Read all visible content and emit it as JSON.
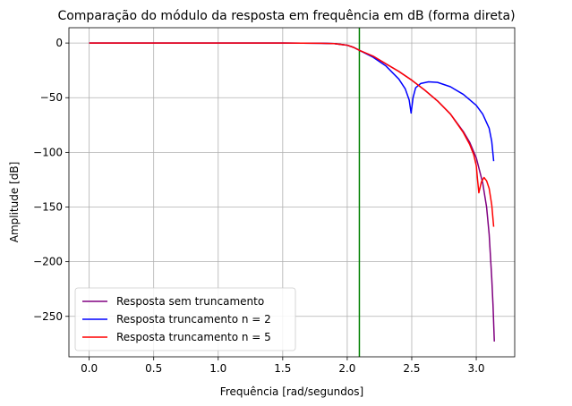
{
  "chart_data": {
    "type": "line",
    "title": "Comparação do módulo da resposta em frequência em dB (forma direta)",
    "xlabel": "Frequência [rad/segundos]",
    "ylabel": "Amplitude [dB]",
    "xlim": [
      -0.157,
      3.298
    ],
    "ylim": [
      -287,
      14
    ],
    "xticks": [
      0.0,
      0.5,
      1.0,
      1.5,
      2.0,
      2.5,
      3.0
    ],
    "xtick_labels": [
      "0.0",
      "0.5",
      "1.0",
      "1.5",
      "2.0",
      "2.5",
      "3.0"
    ],
    "yticks": [
      0,
      -50,
      -100,
      -150,
      -200,
      -250
    ],
    "ytick_labels": [
      "0",
      "−50",
      "−100",
      "−150",
      "−200",
      "−250"
    ],
    "grid": true,
    "legend_position": "lower-left",
    "vline": {
      "x": 2.094,
      "color": "#008000"
    },
    "series": [
      {
        "name": "Resposta sem truncamento",
        "color": "#800080",
        "x": [
          0,
          0.5,
          1.0,
          1.5,
          1.8,
          1.9,
          2.0,
          2.05,
          2.1,
          2.2,
          2.3,
          2.4,
          2.5,
          2.6,
          2.7,
          2.8,
          2.9,
          2.95,
          3.0,
          3.05,
          3.08,
          3.1,
          3.12,
          3.13,
          3.14
        ],
        "y": [
          0,
          0,
          0,
          0,
          -0.2,
          -0.5,
          -2.0,
          -4.0,
          -7.0,
          -12.0,
          -19.0,
          -26.0,
          -34.0,
          -43.0,
          -53.0,
          -65.0,
          -81.0,
          -91.0,
          -105.0,
          -128.0,
          -150.0,
          -175.0,
          -215.0,
          -240.0,
          -273.0
        ]
      },
      {
        "name": "Resposta truncamento n = 2",
        "color": "#0000ff",
        "x": [
          0,
          0.5,
          1.0,
          1.5,
          1.8,
          1.9,
          2.0,
          2.05,
          2.1,
          2.2,
          2.3,
          2.4,
          2.45,
          2.48,
          2.495,
          2.51,
          2.53,
          2.57,
          2.63,
          2.7,
          2.8,
          2.9,
          3.0,
          3.05,
          3.1,
          3.12,
          3.135
        ],
        "y": [
          0,
          0,
          0,
          0,
          -0.2,
          -0.5,
          -2.0,
          -4.0,
          -7.0,
          -13.0,
          -21.0,
          -33.0,
          -42.0,
          -52.0,
          -64.0,
          -50.0,
          -41.0,
          -37.0,
          -35.5,
          -36.0,
          -40.0,
          -47.0,
          -57.0,
          -65.0,
          -78.0,
          -90.0,
          -108.0
        ]
      },
      {
        "name": "Resposta truncamento n = 5",
        "color": "#ff0000",
        "x": [
          0,
          0.5,
          1.0,
          1.5,
          1.8,
          1.9,
          2.0,
          2.05,
          2.1,
          2.2,
          2.3,
          2.4,
          2.5,
          2.6,
          2.7,
          2.8,
          2.9,
          2.95,
          2.98,
          3.0,
          3.01,
          3.02,
          3.04,
          3.06,
          3.08,
          3.1,
          3.12,
          3.135
        ],
        "y": [
          0,
          0,
          0,
          0,
          -0.2,
          -0.5,
          -2.0,
          -4.0,
          -7.0,
          -12.0,
          -19.0,
          -26.0,
          -34.0,
          -43.0,
          -53.0,
          -65.0,
          -82.0,
          -93.0,
          -102.0,
          -112.0,
          -125.0,
          -137.0,
          -127.0,
          -123.0,
          -126.0,
          -133.0,
          -148.0,
          -168.0
        ]
      }
    ]
  }
}
